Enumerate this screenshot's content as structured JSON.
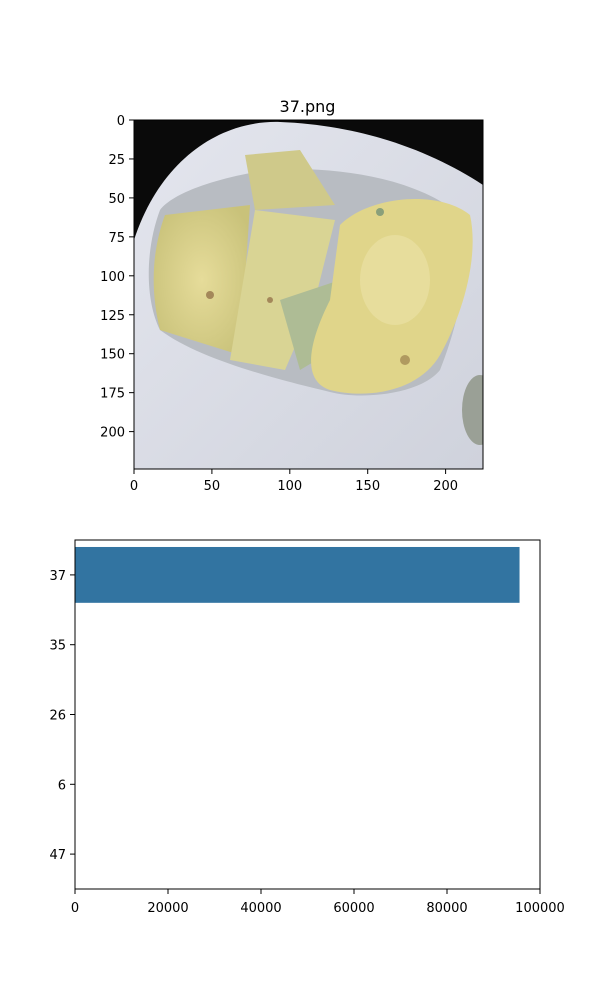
{
  "chart_data": [
    {
      "type": "image",
      "title": "37.png",
      "xlim": [
        0,
        224
      ],
      "ylim": [
        224,
        0
      ],
      "x_ticks": [
        0,
        50,
        100,
        150,
        200
      ],
      "y_ticks": [
        0,
        25,
        50,
        75,
        100,
        125,
        150,
        175,
        200
      ],
      "x_tick_labels": [
        "0",
        "50",
        "100",
        "150",
        "200"
      ],
      "y_tick_labels": [
        "0",
        "25",
        "50",
        "75",
        "100",
        "125",
        "150",
        "175",
        "200"
      ]
    },
    {
      "type": "bar",
      "orientation": "horizontal",
      "categories": [
        "37",
        "35",
        "26",
        "6",
        "47"
      ],
      "values": [
        95600,
        0,
        0,
        0,
        0
      ],
      "xlim": [
        0,
        100000
      ],
      "x_ticks": [
        0,
        20000,
        40000,
        60000,
        80000,
        100000
      ],
      "x_tick_labels": [
        "0",
        "20000",
        "40000",
        "60000",
        "80000",
        "100000"
      ],
      "bar_color": "#3274a1"
    }
  ]
}
